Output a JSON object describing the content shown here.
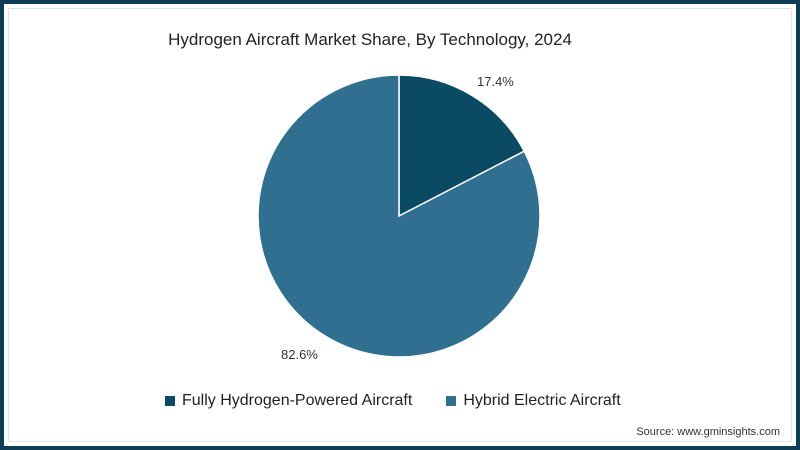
{
  "chart_data": {
    "type": "pie",
    "title": "Hydrogen Aircraft Market Share, By Technology, 2024",
    "categories": [
      "Fully Hydrogen-Powered Aircraft",
      "Hybrid Electric Aircraft"
    ],
    "values": [
      17.4,
      82.6
    ],
    "value_labels": [
      "17.4%",
      "82.6%"
    ],
    "colors": [
      "#0b4a63",
      "#306f90"
    ],
    "start_angle": "12 o'clock, clockwise",
    "legend_position": "bottom"
  },
  "title": "Hydrogen Aircraft Market Share, By Technology, 2024",
  "labels": {
    "slice_1": "17.4%",
    "slice_2": "82.6%"
  },
  "legend": {
    "items": [
      {
        "label": "Fully Hydrogen-Powered Aircraft",
        "color": "#0b4a63"
      },
      {
        "label": "Hybrid Electric Aircraft",
        "color": "#306f90"
      }
    ]
  },
  "source": "Source: www.gminsights.com",
  "colors": {
    "frame_border": "#0f3d56",
    "background": "#ffffff"
  }
}
